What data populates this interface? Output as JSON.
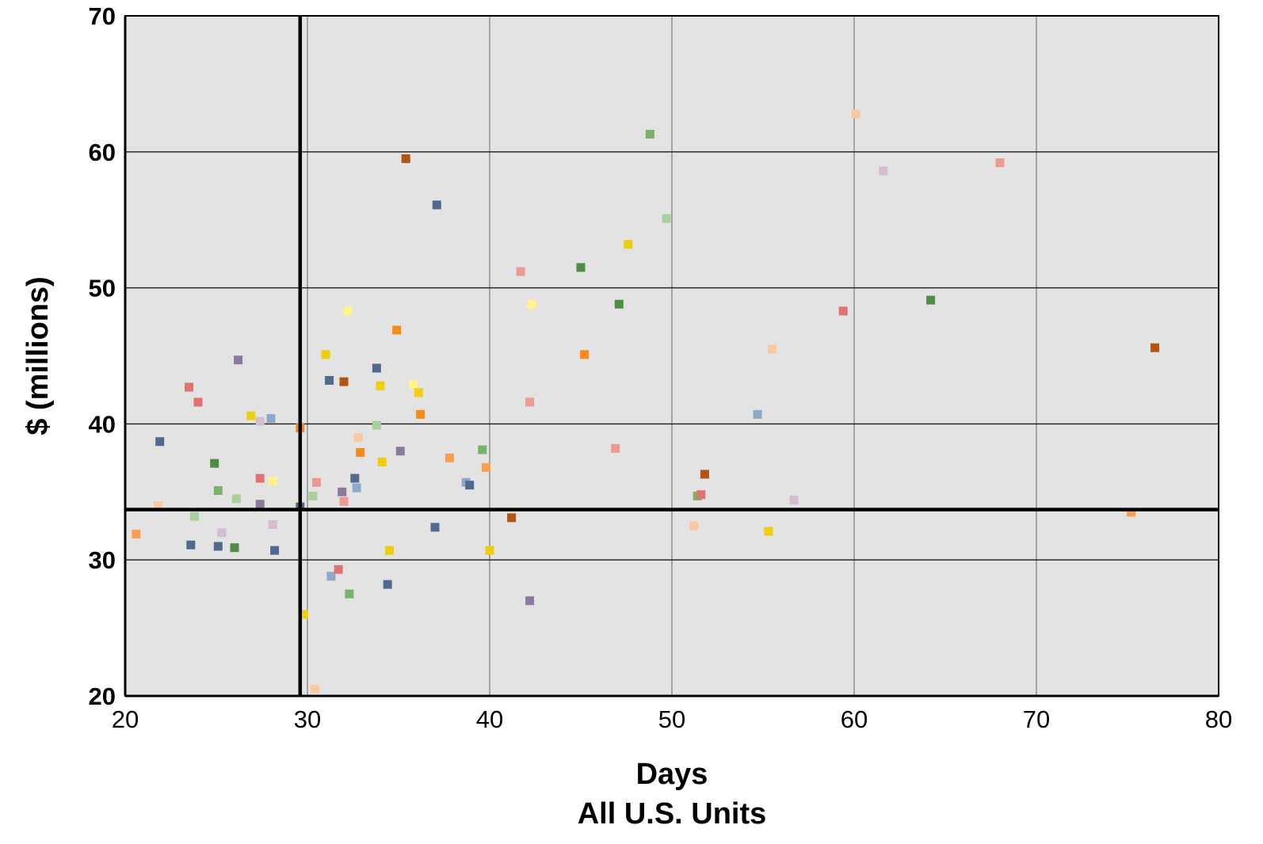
{
  "chart_data": {
    "type": "scatter",
    "title": "",
    "xlabel": "Days",
    "xlabel2": "All U.S. Units",
    "ylabel": "$ (millions)",
    "xlim": [
      20,
      80
    ],
    "ylim": [
      20,
      70
    ],
    "xticks": [
      20,
      30,
      40,
      50,
      60,
      70,
      80
    ],
    "yticks": [
      20,
      30,
      40,
      50,
      60,
      70
    ],
    "grid": true,
    "background": "#e3e3e3",
    "reference_lines": {
      "x": 29.6,
      "y": 33.7
    },
    "points": [
      {
        "x": 20.6,
        "y": 31.9,
        "color": "#f9a04e"
      },
      {
        "x": 21.8,
        "y": 34.0,
        "color": "#fbc8a0"
      },
      {
        "x": 21.9,
        "y": 38.7,
        "color": "#51698f"
      },
      {
        "x": 23.5,
        "y": 42.7,
        "color": "#e07272"
      },
      {
        "x": 23.6,
        "y": 31.1,
        "color": "#51698f"
      },
      {
        "x": 23.8,
        "y": 33.2,
        "color": "#a9cf9c"
      },
      {
        "x": 24.0,
        "y": 41.6,
        "color": "#e07272"
      },
      {
        "x": 24.9,
        "y": 37.1,
        "color": "#4e8c47"
      },
      {
        "x": 25.1,
        "y": 35.1,
        "color": "#79b369"
      },
      {
        "x": 25.1,
        "y": 31.0,
        "color": "#51698f"
      },
      {
        "x": 25.3,
        "y": 32.0,
        "color": "#d2bed0"
      },
      {
        "x": 26.0,
        "y": 30.9,
        "color": "#4e8c47"
      },
      {
        "x": 26.1,
        "y": 34.5,
        "color": "#a9cf9c"
      },
      {
        "x": 26.2,
        "y": 44.7,
        "color": "#8b7a9e"
      },
      {
        "x": 26.9,
        "y": 40.6,
        "color": "#f0cd0d"
      },
      {
        "x": 27.4,
        "y": 36.0,
        "color": "#e07272"
      },
      {
        "x": 27.4,
        "y": 40.2,
        "color": "#d2bed0"
      },
      {
        "x": 27.4,
        "y": 34.1,
        "color": "#8b7a9e"
      },
      {
        "x": 28.0,
        "y": 40.4,
        "color": "#8ea8c8"
      },
      {
        "x": 28.1,
        "y": 35.8,
        "color": "#fff38a"
      },
      {
        "x": 28.1,
        "y": 32.6,
        "color": "#d2bed0"
      },
      {
        "x": 28.2,
        "y": 30.7,
        "color": "#51698f"
      },
      {
        "x": 29.6,
        "y": 39.7,
        "color": "#f98a1a"
      },
      {
        "x": 29.6,
        "y": 33.9,
        "color": "#51698f"
      },
      {
        "x": 29.8,
        "y": 26.0,
        "color": "#f0cd0d"
      },
      {
        "x": 30.3,
        "y": 34.7,
        "color": "#a9cf9c"
      },
      {
        "x": 30.4,
        "y": 20.5,
        "color": "#fbc8a0"
      },
      {
        "x": 30.5,
        "y": 35.7,
        "color": "#eb9b94"
      },
      {
        "x": 31.0,
        "y": 45.1,
        "color": "#f0cd0d"
      },
      {
        "x": 31.2,
        "y": 43.2,
        "color": "#51698f"
      },
      {
        "x": 31.3,
        "y": 28.8,
        "color": "#8ea8c8"
      },
      {
        "x": 31.7,
        "y": 29.3,
        "color": "#e07272"
      },
      {
        "x": 31.9,
        "y": 35.0,
        "color": "#8b7a9e"
      },
      {
        "x": 32.0,
        "y": 43.1,
        "color": "#b35512"
      },
      {
        "x": 32.0,
        "y": 34.3,
        "color": "#eb9b94"
      },
      {
        "x": 32.2,
        "y": 48.3,
        "color": "#fff38a"
      },
      {
        "x": 32.3,
        "y": 27.5,
        "color": "#79b369"
      },
      {
        "x": 32.6,
        "y": 36.0,
        "color": "#51698f"
      },
      {
        "x": 32.7,
        "y": 35.3,
        "color": "#8ea8c8"
      },
      {
        "x": 32.8,
        "y": 39.0,
        "color": "#fbc8a0"
      },
      {
        "x": 32.9,
        "y": 37.9,
        "color": "#f98a1a"
      },
      {
        "x": 33.8,
        "y": 44.1,
        "color": "#51698f"
      },
      {
        "x": 33.8,
        "y": 39.9,
        "color": "#a9cf9c"
      },
      {
        "x": 34.0,
        "y": 42.8,
        "color": "#f0cd0d"
      },
      {
        "x": 34.1,
        "y": 37.2,
        "color": "#f0cd0d"
      },
      {
        "x": 34.4,
        "y": 28.2,
        "color": "#51698f"
      },
      {
        "x": 34.5,
        "y": 30.7,
        "color": "#f0cd0d"
      },
      {
        "x": 34.9,
        "y": 46.9,
        "color": "#f98a1a"
      },
      {
        "x": 35.1,
        "y": 38.0,
        "color": "#8b7a9e"
      },
      {
        "x": 35.4,
        "y": 59.5,
        "color": "#b35512"
      },
      {
        "x": 35.8,
        "y": 42.9,
        "color": "#fff38a"
      },
      {
        "x": 36.1,
        "y": 42.3,
        "color": "#f0cd0d"
      },
      {
        "x": 36.2,
        "y": 40.7,
        "color": "#f98a1a"
      },
      {
        "x": 37.0,
        "y": 32.4,
        "color": "#51698f"
      },
      {
        "x": 37.1,
        "y": 56.1,
        "color": "#51698f"
      },
      {
        "x": 37.8,
        "y": 37.5,
        "color": "#f9a04e"
      },
      {
        "x": 38.7,
        "y": 35.7,
        "color": "#8ea8c8"
      },
      {
        "x": 38.9,
        "y": 35.5,
        "color": "#51698f"
      },
      {
        "x": 39.6,
        "y": 38.1,
        "color": "#79b369"
      },
      {
        "x": 39.8,
        "y": 36.8,
        "color": "#f9a04e"
      },
      {
        "x": 40.0,
        "y": 30.7,
        "color": "#f0cd0d"
      },
      {
        "x": 41.2,
        "y": 33.1,
        "color": "#b35512"
      },
      {
        "x": 41.7,
        "y": 51.2,
        "color": "#eb9b94"
      },
      {
        "x": 42.2,
        "y": 41.6,
        "color": "#eb9b94"
      },
      {
        "x": 42.2,
        "y": 27.0,
        "color": "#8b7a9e"
      },
      {
        "x": 42.3,
        "y": 48.8,
        "color": "#fff38a"
      },
      {
        "x": 45.0,
        "y": 51.5,
        "color": "#4e8c47"
      },
      {
        "x": 45.2,
        "y": 45.1,
        "color": "#f98a1a"
      },
      {
        "x": 46.9,
        "y": 38.2,
        "color": "#eb9b94"
      },
      {
        "x": 47.1,
        "y": 48.8,
        "color": "#4e8c47"
      },
      {
        "x": 47.6,
        "y": 53.2,
        "color": "#f0cd0d"
      },
      {
        "x": 48.8,
        "y": 61.3,
        "color": "#79b369"
      },
      {
        "x": 49.7,
        "y": 55.1,
        "color": "#a9cf9c"
      },
      {
        "x": 51.2,
        "y": 32.5,
        "color": "#fbc8a0"
      },
      {
        "x": 51.4,
        "y": 34.7,
        "color": "#79b369"
      },
      {
        "x": 51.6,
        "y": 34.8,
        "color": "#e07272"
      },
      {
        "x": 51.8,
        "y": 36.3,
        "color": "#b35512"
      },
      {
        "x": 54.7,
        "y": 40.7,
        "color": "#8ea8c8"
      },
      {
        "x": 55.3,
        "y": 32.1,
        "color": "#f0cd0d"
      },
      {
        "x": 55.5,
        "y": 45.5,
        "color": "#fbc8a0"
      },
      {
        "x": 56.7,
        "y": 34.4,
        "color": "#d2bed0"
      },
      {
        "x": 59.4,
        "y": 48.3,
        "color": "#e07272"
      },
      {
        "x": 60.1,
        "y": 62.8,
        "color": "#fbc8a0"
      },
      {
        "x": 61.6,
        "y": 58.6,
        "color": "#d2bed0"
      },
      {
        "x": 64.2,
        "y": 49.1,
        "color": "#4e8c47"
      },
      {
        "x": 68.0,
        "y": 59.2,
        "color": "#eb9b94"
      },
      {
        "x": 75.2,
        "y": 33.5,
        "color": "#f9a04e"
      },
      {
        "x": 76.5,
        "y": 45.6,
        "color": "#b35512"
      }
    ]
  }
}
